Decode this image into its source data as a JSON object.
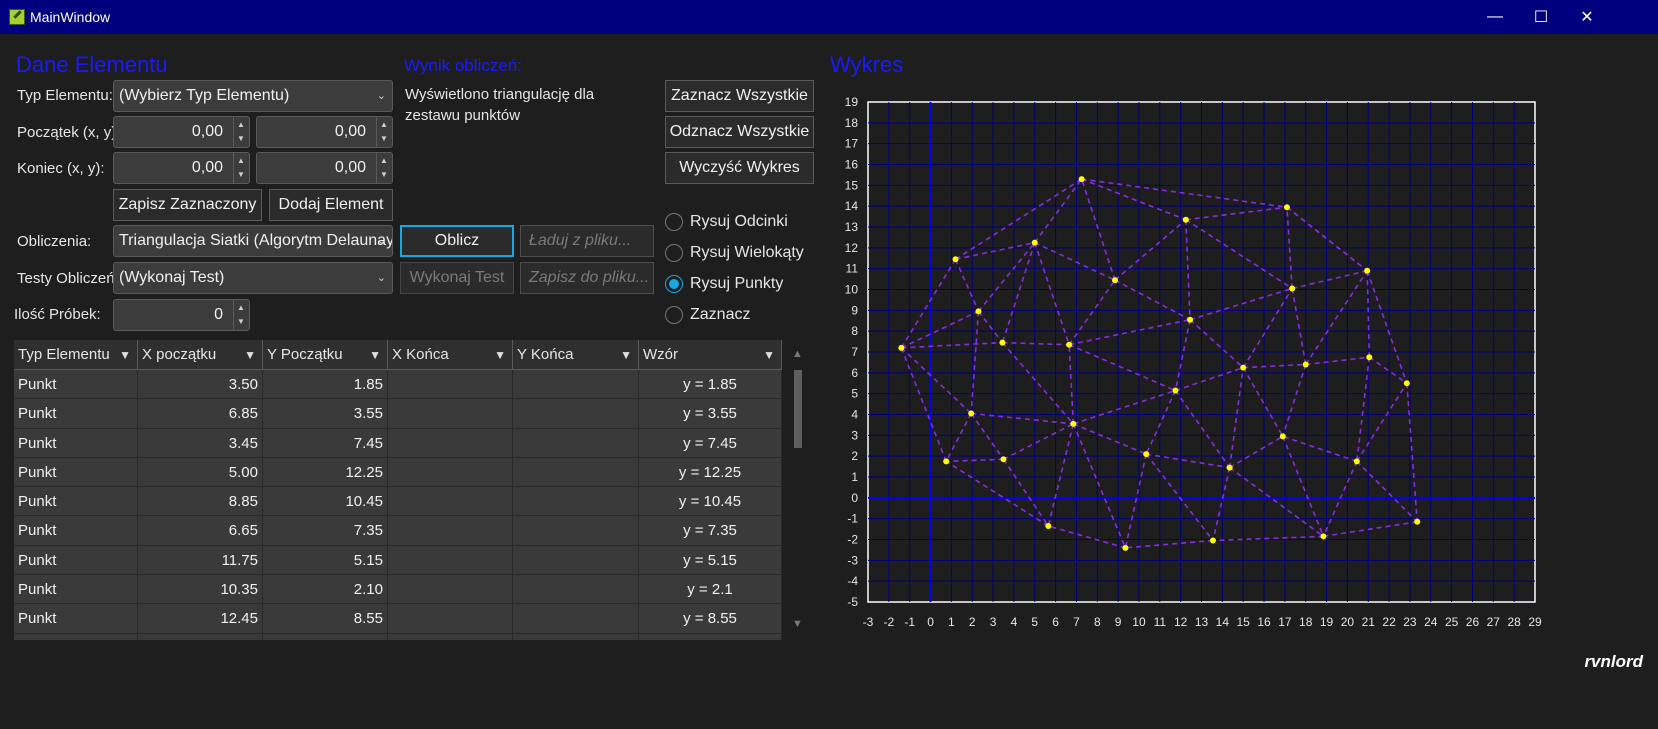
{
  "window": {
    "title": "MainWindow",
    "minimize_glyph": "—",
    "maximize_glyph": "☐",
    "close_glyph": "✕"
  },
  "element_panel": {
    "title": "Dane Elementu",
    "type_label": "Typ Elementu:",
    "type_value": "(Wybierz Typ Elementu)",
    "start_label": "Początek (x, y):",
    "start_x": "0,00",
    "start_y": "0,00",
    "end_label": "Koniec (x, y):",
    "end_x": "0,00",
    "end_y": "0,00",
    "save_selected_label": "Zapisz Zaznaczony",
    "add_element_label": "Dodaj Element",
    "calc_label": "Obliczenia:",
    "calc_value": "Triangulacja Siatki (Algorytm Delaunaya)",
    "tests_label": "Testy Obliczeń:",
    "tests_value": "(Wykonaj Test)",
    "samples_label": "Ilość Próbek:",
    "samples_value": "0"
  },
  "result_panel": {
    "title": "Wynik obliczeń:",
    "text": "Wyświetlono triangulację dla zestawu punktów",
    "compute_label": "Oblicz",
    "load_placeholder": "Ładuj z pliku...",
    "run_test_label": "Wykonaj Test",
    "save_placeholder": "Zapisz do pliku..."
  },
  "controls": {
    "select_all": "Zaznacz Wszystkie",
    "deselect_all": "Odznacz Wszystkie",
    "clear_chart": "Wyczyść Wykres",
    "radios": [
      {
        "label": "Rysuj Odcinki",
        "checked": false
      },
      {
        "label": "Rysuj Wielokąty",
        "checked": false
      },
      {
        "label": "Rysuj Punkty",
        "checked": true
      },
      {
        "label": "Zaznacz",
        "checked": false
      }
    ]
  },
  "table": {
    "columns": [
      "Typ Elementu",
      "X początku",
      "Y Początku",
      "X Końca",
      "Y Końca",
      "Wzór"
    ],
    "rows": [
      [
        "Punkt",
        "3.50",
        "1.85",
        "",
        "",
        "y = 1.85"
      ],
      [
        "Punkt",
        "6.85",
        "3.55",
        "",
        "",
        "y = 3.55"
      ],
      [
        "Punkt",
        "3.45",
        "7.45",
        "",
        "",
        "y = 7.45"
      ],
      [
        "Punkt",
        "5.00",
        "12.25",
        "",
        "",
        "y = 12.25"
      ],
      [
        "Punkt",
        "8.85",
        "10.45",
        "",
        "",
        "y = 10.45"
      ],
      [
        "Punkt",
        "6.65",
        "7.35",
        "",
        "",
        "y = 7.35"
      ],
      [
        "Punkt",
        "11.75",
        "5.15",
        "",
        "",
        "y = 5.15"
      ],
      [
        "Punkt",
        "10.35",
        "2.10",
        "",
        "",
        "y = 2.1"
      ],
      [
        "Punkt",
        "12.45",
        "8.55",
        "",
        "",
        "y = 8.55"
      ],
      [
        "",
        "",
        "",
        "",
        "",
        ""
      ]
    ]
  },
  "chart": {
    "title": "Wykres",
    "axis_color": "#0000ff",
    "grid_color": "#00007f",
    "edge_color": "#8a2be2",
    "point_color": "#ffff00"
  },
  "chart_data": {
    "type": "scatter",
    "title": "",
    "xlim": [
      -3,
      29
    ],
    "ylim": [
      -5,
      19
    ],
    "x_ticks": [
      -3,
      -2,
      -1,
      0,
      1,
      2,
      3,
      4,
      5,
      6,
      7,
      8,
      9,
      10,
      11,
      12,
      13,
      14,
      15,
      16,
      17,
      18,
      19,
      20,
      21,
      22,
      23,
      24,
      25,
      26,
      27,
      28,
      29
    ],
    "y_ticks": [
      19,
      18,
      17,
      16,
      15,
      14,
      13,
      12,
      11,
      10,
      9,
      8,
      7,
      6,
      5,
      4,
      3,
      2,
      1,
      0,
      -1,
      -2,
      -3,
      -4,
      -5
    ],
    "grid": true,
    "points": [
      [
        0.75,
        1.75
      ],
      [
        3.5,
        1.85
      ],
      [
        6.85,
        3.55
      ],
      [
        1.95,
        4.05
      ],
      [
        3.45,
        7.45
      ],
      [
        5.0,
        12.25
      ],
      [
        1.2,
        11.45
      ],
      [
        2.3,
        8.95
      ],
      [
        -1.4,
        7.2
      ],
      [
        6.65,
        7.35
      ],
      [
        7.25,
        15.3
      ],
      [
        8.85,
        10.45
      ],
      [
        12.25,
        13.35
      ],
      [
        12.45,
        8.55
      ],
      [
        11.75,
        5.15
      ],
      [
        10.35,
        2.1
      ],
      [
        14.35,
        1.45
      ],
      [
        15.0,
        6.25
      ],
      [
        16.9,
        2.95
      ],
      [
        17.1,
        13.95
      ],
      [
        17.35,
        10.05
      ],
      [
        18.0,
        6.4
      ],
      [
        20.45,
        1.75
      ],
      [
        21.05,
        6.75
      ],
      [
        20.95,
        10.9
      ],
      [
        22.85,
        5.5
      ],
      [
        23.35,
        -1.15
      ],
      [
        18.85,
        -1.85
      ],
      [
        13.55,
        -2.05
      ],
      [
        9.35,
        -2.4
      ],
      [
        5.65,
        -1.35
      ]
    ],
    "edges": [
      [
        8,
        6
      ],
      [
        6,
        10
      ],
      [
        10,
        19
      ],
      [
        19,
        24
      ],
      [
        24,
        25
      ],
      [
        25,
        26
      ],
      [
        26,
        27
      ],
      [
        27,
        28
      ],
      [
        28,
        29
      ],
      [
        29,
        30
      ],
      [
        30,
        0
      ],
      [
        0,
        8
      ],
      [
        8,
        7
      ],
      [
        8,
        4
      ],
      [
        8,
        3
      ],
      [
        6,
        7
      ],
      [
        6,
        5
      ],
      [
        7,
        5
      ],
      [
        7,
        4
      ],
      [
        7,
        3
      ],
      [
        5,
        10
      ],
      [
        5,
        11
      ],
      [
        5,
        9
      ],
      [
        5,
        4
      ],
      [
        4,
        9
      ],
      [
        4,
        2
      ],
      [
        3,
        2
      ],
      [
        3,
        0
      ],
      [
        3,
        1
      ],
      [
        1,
        0
      ],
      [
        1,
        30
      ],
      [
        1,
        2
      ],
      [
        2,
        30
      ],
      [
        2,
        29
      ],
      [
        2,
        15
      ],
      [
        2,
        14
      ],
      [
        2,
        9
      ],
      [
        9,
        11
      ],
      [
        9,
        13
      ],
      [
        9,
        14
      ],
      [
        11,
        10
      ],
      [
        11,
        12
      ],
      [
        11,
        13
      ],
      [
        10,
        12
      ],
      [
        12,
        19
      ],
      [
        12,
        20
      ],
      [
        12,
        13
      ],
      [
        13,
        20
      ],
      [
        13,
        17
      ],
      [
        13,
        14
      ],
      [
        14,
        17
      ],
      [
        14,
        15
      ],
      [
        14,
        16
      ],
      [
        15,
        16
      ],
      [
        15,
        28
      ],
      [
        15,
        29
      ],
      [
        16,
        28
      ],
      [
        16,
        27
      ],
      [
        16,
        18
      ],
      [
        16,
        17
      ],
      [
        17,
        18
      ],
      [
        17,
        21
      ],
      [
        17,
        20
      ],
      [
        20,
        19
      ],
      [
        20,
        24
      ],
      [
        20,
        21
      ],
      [
        21,
        24
      ],
      [
        21,
        23
      ],
      [
        21,
        18
      ],
      [
        23,
        24
      ],
      [
        23,
        25
      ],
      [
        23,
        22
      ],
      [
        22,
        25
      ],
      [
        22,
        26
      ],
      [
        22,
        27
      ],
      [
        22,
        18
      ],
      [
        18,
        27
      ],
      [
        19,
        24
      ]
    ]
  },
  "signature": "rvnlord"
}
